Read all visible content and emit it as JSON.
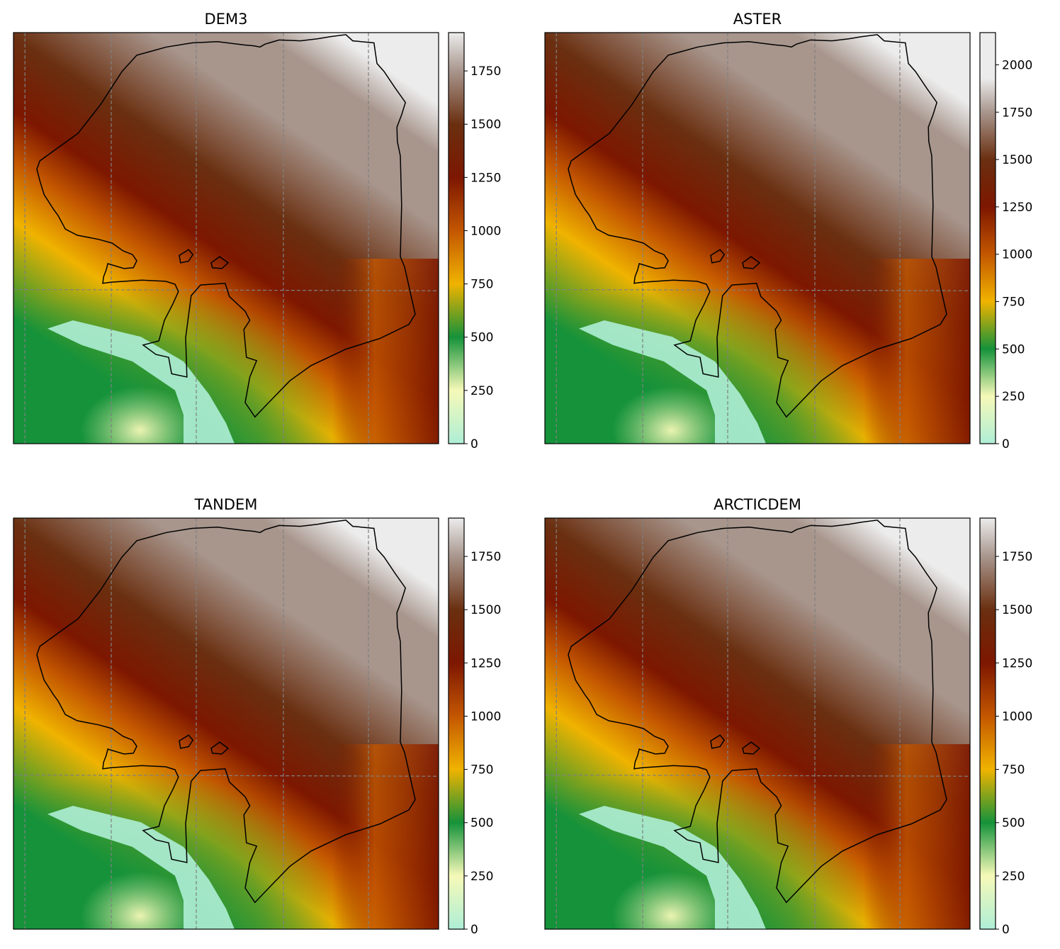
{
  "figure": {
    "panels": [
      {
        "title": "DEM3",
        "ticks": [
          "0",
          "250",
          "500",
          "750",
          "1000",
          "1250",
          "1500",
          "1750"
        ],
        "vmax": 1930
      },
      {
        "title": "ASTER",
        "ticks": [
          "0",
          "250",
          "500",
          "750",
          "1000",
          "1250",
          "1500",
          "1750",
          "2000"
        ],
        "vmax": 2170
      },
      {
        "title": "TANDEM",
        "ticks": [
          "0",
          "250",
          "500",
          "750",
          "1000",
          "1250",
          "1500",
          "1750"
        ],
        "vmax": 1930
      },
      {
        "title": "ARCTICDEM",
        "ticks": [
          "0",
          "250",
          "500",
          "750",
          "1000",
          "1250",
          "1500",
          "1750"
        ],
        "vmax": 1930
      }
    ],
    "colormap": {
      "stops": [
        {
          "value": 0,
          "color": "#aeeed6"
        },
        {
          "value": 250,
          "color": "#f6f9b8"
        },
        {
          "value": 500,
          "color": "#15923a"
        },
        {
          "value": 750,
          "color": "#f0b300"
        },
        {
          "value": 1000,
          "color": "#c35600"
        },
        {
          "value": 1250,
          "color": "#7d1700"
        },
        {
          "value": 1500,
          "color": "#6a2f10"
        },
        {
          "value": 1750,
          "color": "#a8968d"
        },
        {
          "value": 1930,
          "color": "#ececec"
        }
      ]
    },
    "outline_color": "#000000",
    "grid_color": "#808080"
  }
}
